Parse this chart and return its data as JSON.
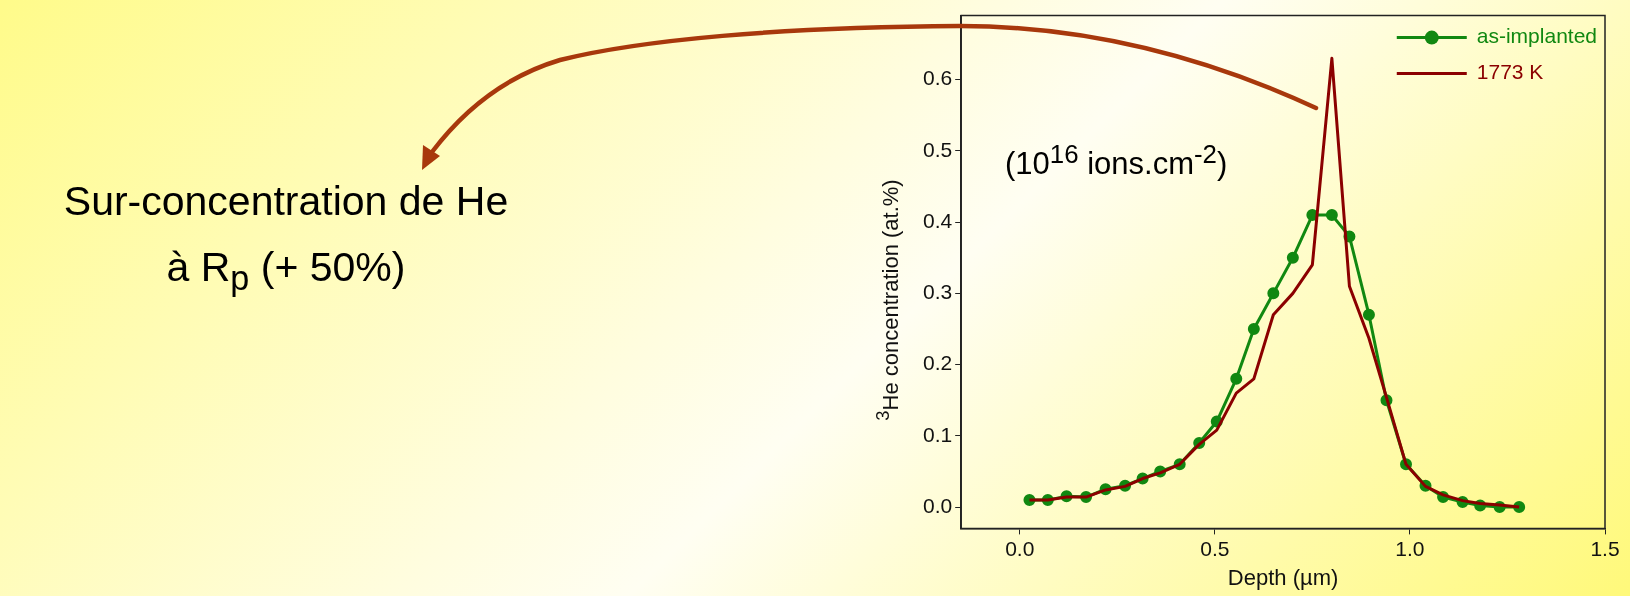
{
  "chart_data": {
    "type": "line",
    "xlabel": "Depth (µm)",
    "ylabel": "$^{3}$He concentration (at.%)",
    "annotations": [
      "Sur-concentration de He à R$_{p}$ (+ 50%)",
      "(10$^{16}$ ions.cm$^{-2}$)"
    ],
    "xlim": [
      -0.15,
      1.5
    ],
    "xticks": [
      {
        "value": 0,
        "label": "0.0"
      },
      0.5,
      {
        "value": 1,
        "label": "1.0"
      },
      1.5
    ],
    "ylim": [
      -0.03,
      0.69
    ],
    "yticks": [
      {
        "value": 0,
        "label": "0.0"
      },
      0.1,
      0.2,
      0.3,
      0.4,
      0.5,
      0.6
    ],
    "grid": false,
    "legend": "top right",
    "series": [
      {
        "name": "as-implanted",
        "color": "#118811",
        "marker": "circle",
        "x": [
          0.025,
          0.072,
          0.12,
          0.17,
          0.22,
          0.27,
          0.315,
          0.36,
          0.41,
          0.46,
          0.505,
          0.555,
          0.6,
          0.65,
          0.7,
          0.75,
          0.8,
          0.845,
          0.895,
          0.94,
          0.99,
          1.04,
          1.085,
          1.135,
          1.18,
          1.23,
          1.28
        ],
        "values": [
          0.01,
          0.01,
          0.015,
          0.014,
          0.025,
          0.03,
          0.04,
          0.05,
          0.06,
          0.09,
          0.12,
          0.18,
          0.25,
          0.3,
          0.35,
          0.41,
          0.41,
          0.38,
          0.27,
          0.15,
          0.06,
          0.03,
          0.014,
          0.007,
          0.002,
          0,
          0
        ]
      },
      {
        "name": "1773 K",
        "color": "#8b0000",
        "marker": "none",
        "x": [
          0.025,
          0.072,
          0.12,
          0.17,
          0.22,
          0.27,
          0.315,
          0.36,
          0.41,
          0.46,
          0.505,
          0.555,
          0.6,
          0.65,
          0.7,
          0.75,
          0.8,
          0.845,
          0.895,
          0.94,
          0.99,
          1.04,
          1.085,
          1.135,
          1.18,
          1.23,
          1.28
        ],
        "values": [
          0.01,
          0.01,
          0.014,
          0.014,
          0.024,
          0.029,
          0.04,
          0.048,
          0.06,
          0.088,
          0.108,
          0.16,
          0.18,
          0.27,
          0.3,
          0.34,
          0.63,
          0.31,
          0.237,
          0.154,
          0.06,
          0.029,
          0.017,
          0.009,
          0.005,
          0.003,
          0
        ]
      }
    ]
  }
}
